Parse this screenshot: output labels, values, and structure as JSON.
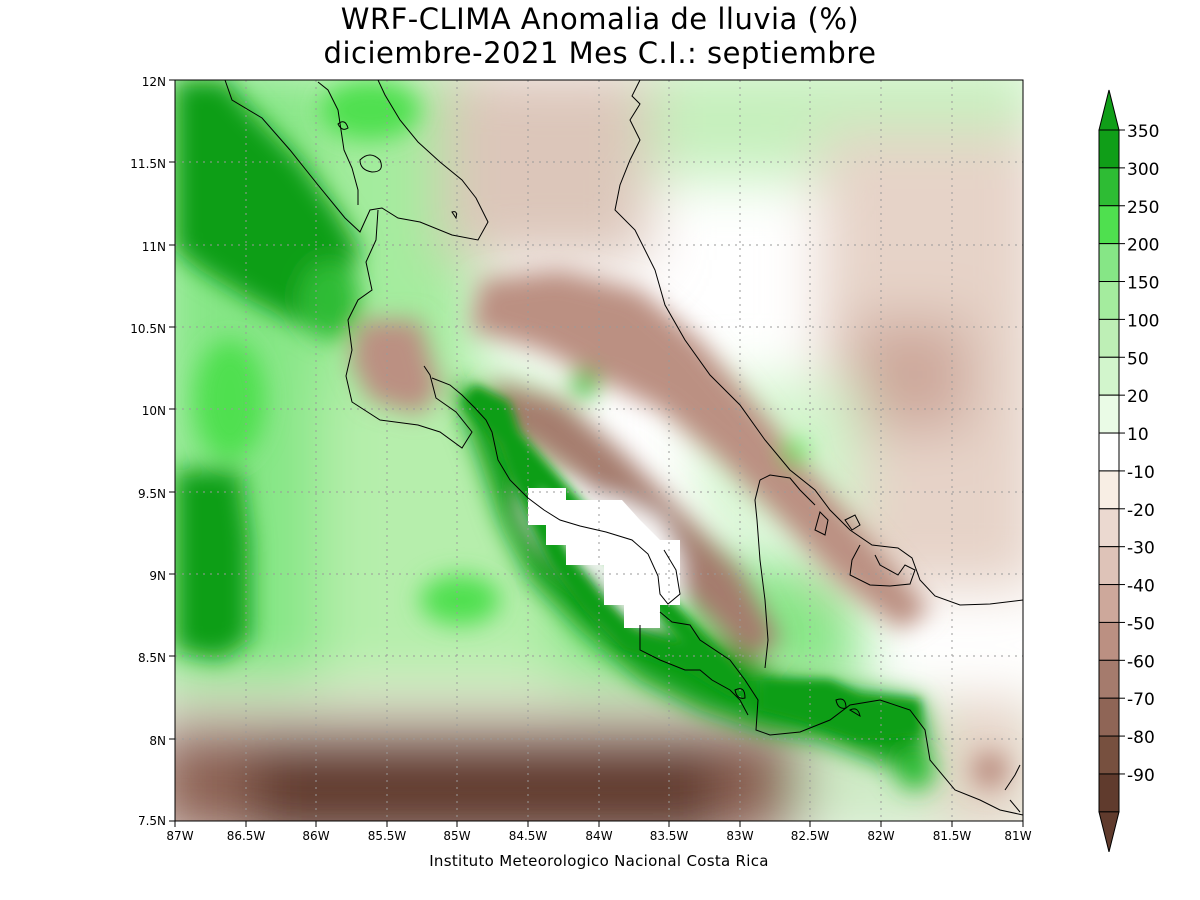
{
  "title_line1": "WRF-CLIMA Anomalia de lluvia (%)",
  "title_line2": "diciembre-2021 Mes C.I.: septiembre",
  "footer": "Instituto Meteorologico Nacional Costa Rica",
  "axes": {
    "x_ticks": [
      "87W",
      "86.5W",
      "86W",
      "85.5W",
      "85W",
      "84.5W",
      "84W",
      "83.5W",
      "83W",
      "82.5W",
      "82W",
      "81.5W",
      "81W"
    ],
    "y_ticks": [
      "12N",
      "11.5N",
      "11N",
      "10.5N",
      "10N",
      "9.5N",
      "9N",
      "8.5N",
      "8N",
      "7.5N"
    ],
    "lon_range": [
      -87,
      -81
    ],
    "lat_range": [
      7.5,
      12
    ],
    "grid": "dotted"
  },
  "legend": {
    "labels": [
      "350",
      "300",
      "250",
      "200",
      "150",
      "100",
      "50",
      "20",
      "10",
      "-10",
      "-20",
      "-30",
      "-40",
      "-50",
      "-60",
      "-70",
      "-80",
      "-90"
    ],
    "colors": [
      "#109e18",
      "#2ebc34",
      "#4fe04f",
      "#86e686",
      "#a4ec9e",
      "#beefb6",
      "#d2f5cc",
      "#eafbe6",
      "#ffffff",
      "#f8eee4",
      "#ebd9d0",
      "#dec3b8",
      "#cda89b",
      "#bb9082",
      "#a57b6d",
      "#8f6556",
      "#77503f",
      "#603b2d"
    ],
    "top_color": "#109e18",
    "bottom_color": "#603b2d"
  }
}
